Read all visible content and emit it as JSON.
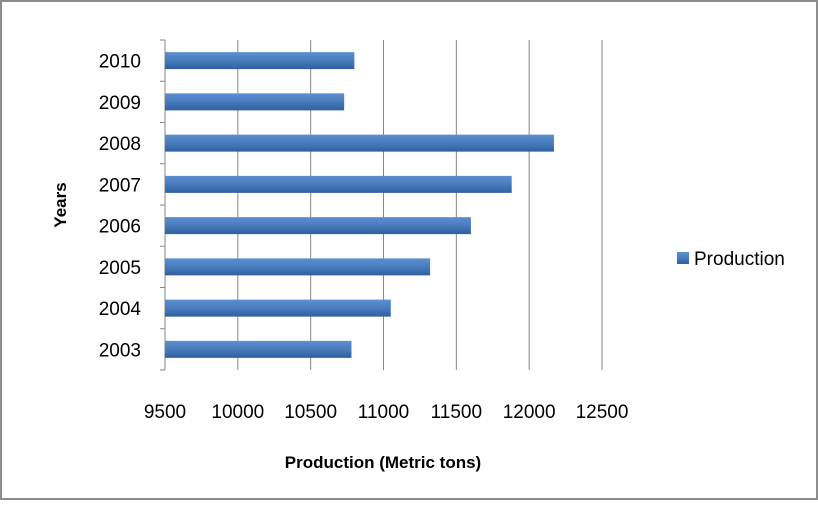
{
  "chart_data": {
    "type": "bar",
    "orientation": "horizontal",
    "title": "",
    "xlabel": "Production (Metric tons)",
    "ylabel": "Years",
    "categories": [
      "2010",
      "2009",
      "2008",
      "2007",
      "2006",
      "2005",
      "2004",
      "2003"
    ],
    "series": [
      {
        "name": "Production",
        "values": [
          10800,
          10730,
          12170,
          11880,
          11600,
          11320,
          11050,
          10780
        ],
        "color": "#4f81bd"
      }
    ],
    "xlim": [
      9500,
      12500
    ],
    "xticks": [
      "9500",
      "10000",
      "10500",
      "11000",
      "11500",
      "12000",
      "12500"
    ],
    "grid": "vertical",
    "legend_position": "right"
  }
}
